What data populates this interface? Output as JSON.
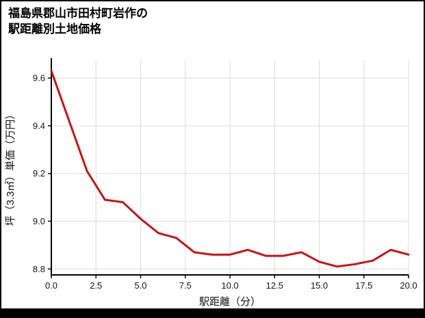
{
  "title": {
    "line1": "福島県郡山市田村町岩作の",
    "line2": "駅距離別土地価格"
  },
  "chart_data": {
    "type": "line",
    "title": "福島県郡山市田村町岩作の駅距離別土地価格",
    "xlabel": "駅距離（分）",
    "ylabel": "坪（3.3㎡）単価（万円）",
    "x": [
      0,
      1,
      2,
      3,
      4,
      5,
      6,
      7,
      8,
      9,
      10,
      11,
      12,
      13,
      14,
      15,
      16,
      17,
      18,
      19,
      20
    ],
    "y": [
      9.63,
      9.42,
      9.21,
      9.09,
      9.08,
      9.01,
      8.95,
      8.93,
      8.87,
      8.86,
      8.86,
      8.88,
      8.855,
      8.855,
      8.87,
      8.83,
      8.81,
      8.82,
      8.835,
      8.88,
      8.86
    ],
    "xlim": [
      0,
      20
    ],
    "ylim": [
      8.775,
      9.675
    ],
    "xticks": [
      0,
      2.5,
      5,
      7.5,
      10,
      12.5,
      15,
      17.5,
      20
    ],
    "xtick_labels": [
      "0.0",
      "2.5",
      "5.0",
      "7.5",
      "10.0",
      "12.5",
      "15.0",
      "17.5",
      "20.0"
    ],
    "yticks": [
      8.8,
      9.0,
      9.2,
      9.4,
      9.6
    ],
    "ytick_labels": [
      "8.8",
      "9.0",
      "9.2",
      "9.4",
      "9.6"
    ],
    "grid": true,
    "legend_position": "none",
    "line_color": "#cc1111",
    "grid_color": "#dcdcdc",
    "axis_color": "#000000",
    "text_color": "#111111"
  }
}
